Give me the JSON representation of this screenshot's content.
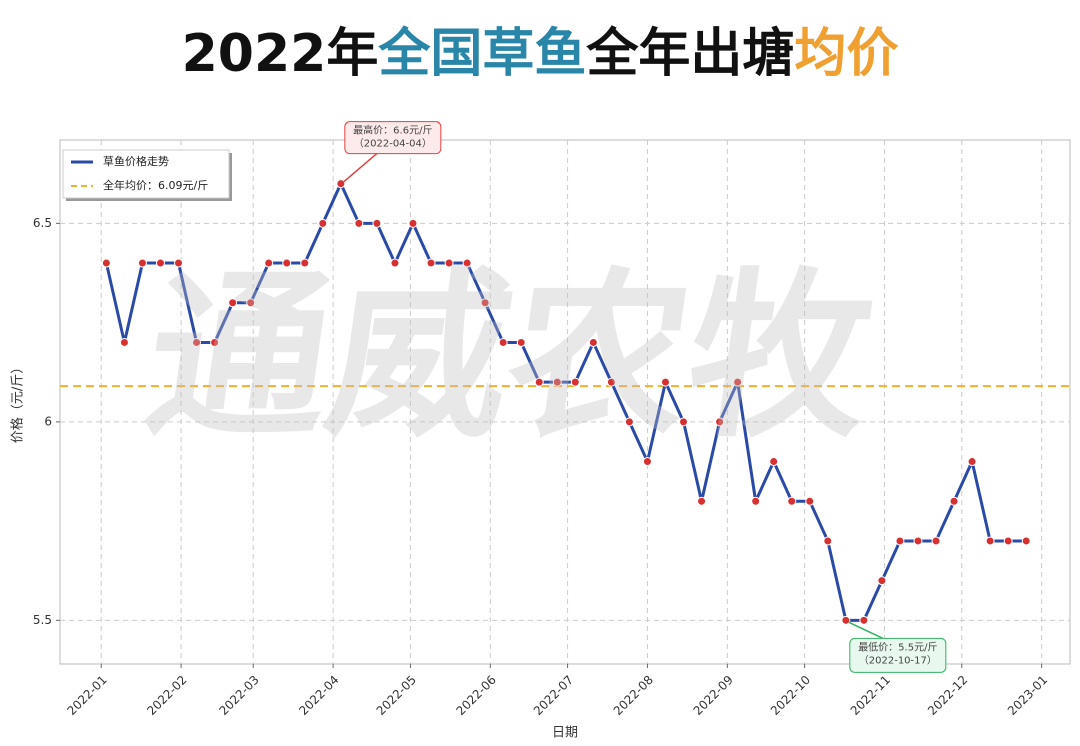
{
  "chart_data": {
    "type": "line",
    "title_parts": [
      {
        "text": "2022年",
        "color": "#111111"
      },
      {
        "text": "全国草鱼",
        "color": "#2a86a8"
      },
      {
        "text": "全年出塘",
        "color": "#111111"
      },
      {
        "text": "均价",
        "color": "#f0a030"
      }
    ],
    "x_label": "日期",
    "y_label": "价格（元/斤）",
    "watermark": "通威农牧",
    "x": [
      "2022-01-03",
      "2022-01-10",
      "2022-01-17",
      "2022-01-24",
      "2022-01-31",
      "2022-02-07",
      "2022-02-14",
      "2022-02-21",
      "2022-02-28",
      "2022-03-07",
      "2022-03-14",
      "2022-03-21",
      "2022-03-28",
      "2022-04-04",
      "2022-04-11",
      "2022-04-18",
      "2022-04-25",
      "2022-05-02",
      "2022-05-09",
      "2022-05-16",
      "2022-05-23",
      "2022-05-30",
      "2022-06-06",
      "2022-06-13",
      "2022-06-20",
      "2022-06-27",
      "2022-07-04",
      "2022-07-11",
      "2022-07-18",
      "2022-07-25",
      "2022-08-01",
      "2022-08-08",
      "2022-08-15",
      "2022-08-22",
      "2022-08-29",
      "2022-09-05",
      "2022-09-12",
      "2022-09-19",
      "2022-09-26",
      "2022-10-03",
      "2022-10-10",
      "2022-10-17",
      "2022-10-24",
      "2022-10-31",
      "2022-11-07",
      "2022-11-14",
      "2022-11-21",
      "2022-11-28",
      "2022-12-05",
      "2022-12-12",
      "2022-12-19",
      "2022-12-26"
    ],
    "series": [
      {
        "name": "草鱼价格走势",
        "color": "#2a4aa8",
        "marker_color": "#d63030",
        "values": [
          6.4,
          6.2,
          6.4,
          6.4,
          6.4,
          6.2,
          6.2,
          6.3,
          6.3,
          6.4,
          6.4,
          6.4,
          6.5,
          6.6,
          6.5,
          6.5,
          6.4,
          6.5,
          6.4,
          6.4,
          6.4,
          6.3,
          6.2,
          6.2,
          6.1,
          6.1,
          6.1,
          6.2,
          6.1,
          6.0,
          5.9,
          6.1,
          6.0,
          5.8,
          6.0,
          6.1,
          5.8,
          5.9,
          5.8,
          5.8,
          5.7,
          5.5,
          5.5,
          5.6,
          5.7,
          5.7,
          5.7,
          5.8,
          5.9,
          5.7,
          5.7,
          5.7
        ]
      }
    ],
    "mean_line": {
      "name": "全年均价：6.09元/斤",
      "value": 6.09,
      "color": "#f0b030"
    },
    "annotations": [
      {
        "lines": [
          "最高价：6.6元/斤",
          "（2022-04-04）"
        ],
        "x": "2022-04-04",
        "y": 6.6,
        "color": "#e04040",
        "fill": "#fdeaea"
      },
      {
        "lines": [
          "最低价：5.5元/斤",
          "（2022-10-17）"
        ],
        "x": "2022-10-17",
        "y": 5.5,
        "color": "#30b060",
        "fill": "#e8f8ee"
      }
    ],
    "xlim": [
      "2021-12-16",
      "2023-01-12"
    ],
    "xticks": [
      "2022-01",
      "2022-02",
      "2022-03",
      "2022-04",
      "2022-05",
      "2022-06",
      "2022-07",
      "2022-08",
      "2022-09",
      "2022-10",
      "2022-11",
      "2022-12",
      "2023-01"
    ],
    "ylim": [
      5.39,
      6.71
    ],
    "yticks": [
      5.5,
      6.0,
      6.5
    ],
    "grid": true,
    "legend": "upper left"
  }
}
